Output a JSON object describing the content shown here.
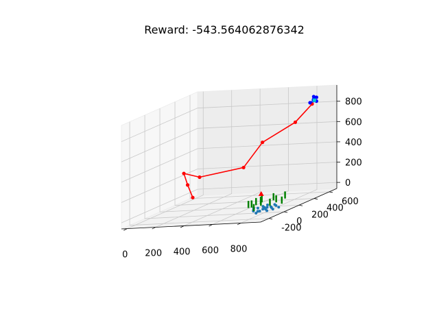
{
  "chart_data": {
    "type": "scatter3d",
    "title": "Reward: -543.564062876342",
    "xlim": [
      -40,
      940
    ],
    "ylim": [
      -310,
      700
    ],
    "zlim": [
      -60,
      960
    ],
    "ticks": {
      "x": [
        0,
        200,
        400,
        600,
        800
      ],
      "y": [
        -200,
        0,
        200,
        400,
        600
      ],
      "z": [
        0,
        200,
        400,
        600,
        800
      ]
    },
    "grid": true,
    "trajectory": {
      "color": "#ff0000",
      "points": [
        [
          830,
          580,
          820
        ],
        [
          770,
          470,
          680
        ],
        [
          470,
          600,
          460
        ],
        [
          390,
          500,
          250
        ],
        [
          160,
          350,
          220
        ],
        [
          60,
          330,
          270
        ],
        [
          60,
          380,
          140
        ],
        [
          80,
          410,
          5
        ]
      ]
    },
    "target_cluster": {
      "color": "#0000ff",
      "points": [
        [
          830,
          600,
          860
        ],
        [
          840,
          580,
          860
        ],
        [
          820,
          620,
          880
        ],
        [
          850,
          600,
          840
        ],
        [
          810,
          590,
          830
        ],
        [
          845,
          610,
          875
        ]
      ]
    },
    "target_marker": {
      "color": "#00ced1",
      "point": [
        835,
        600,
        850
      ]
    },
    "ground_points": {
      "color": "#1f77b4",
      "points": [
        [
          760,
          -10,
          -40
        ],
        [
          780,
          20,
          -30
        ],
        [
          800,
          40,
          -20
        ],
        [
          820,
          60,
          -30
        ],
        [
          740,
          30,
          -20
        ],
        [
          790,
          -40,
          -30
        ],
        [
          810,
          0,
          -25
        ],
        [
          830,
          -20,
          -35
        ],
        [
          770,
          60,
          -25
        ],
        [
          750,
          80,
          -20
        ],
        [
          800,
          90,
          -30
        ],
        [
          840,
          40,
          -40
        ],
        [
          720,
          10,
          -30
        ],
        [
          760,
          120,
          -20
        ],
        [
          780,
          -70,
          -40
        ],
        [
          820,
          120,
          -30
        ],
        [
          800,
          140,
          -25
        ],
        [
          740,
          -30,
          -30
        ],
        [
          860,
          80,
          -35
        ],
        [
          700,
          50,
          -25
        ]
      ]
    },
    "obstacles": {
      "color": "#008000",
      "points": [
        [
          700,
          -20,
          40
        ],
        [
          720,
          120,
          50
        ],
        [
          760,
          200,
          40
        ],
        [
          800,
          160,
          30
        ],
        [
          820,
          240,
          40
        ],
        [
          680,
          60,
          20
        ],
        [
          740,
          70,
          30
        ],
        [
          850,
          140,
          20
        ],
        [
          780,
          -100,
          30
        ],
        [
          760,
          30,
          60
        ],
        [
          690,
          100,
          30
        ],
        [
          830,
          20,
          40
        ]
      ]
    },
    "start_marker": {
      "color": "#ff0000",
      "point": [
        620,
        300,
        40
      ]
    }
  }
}
